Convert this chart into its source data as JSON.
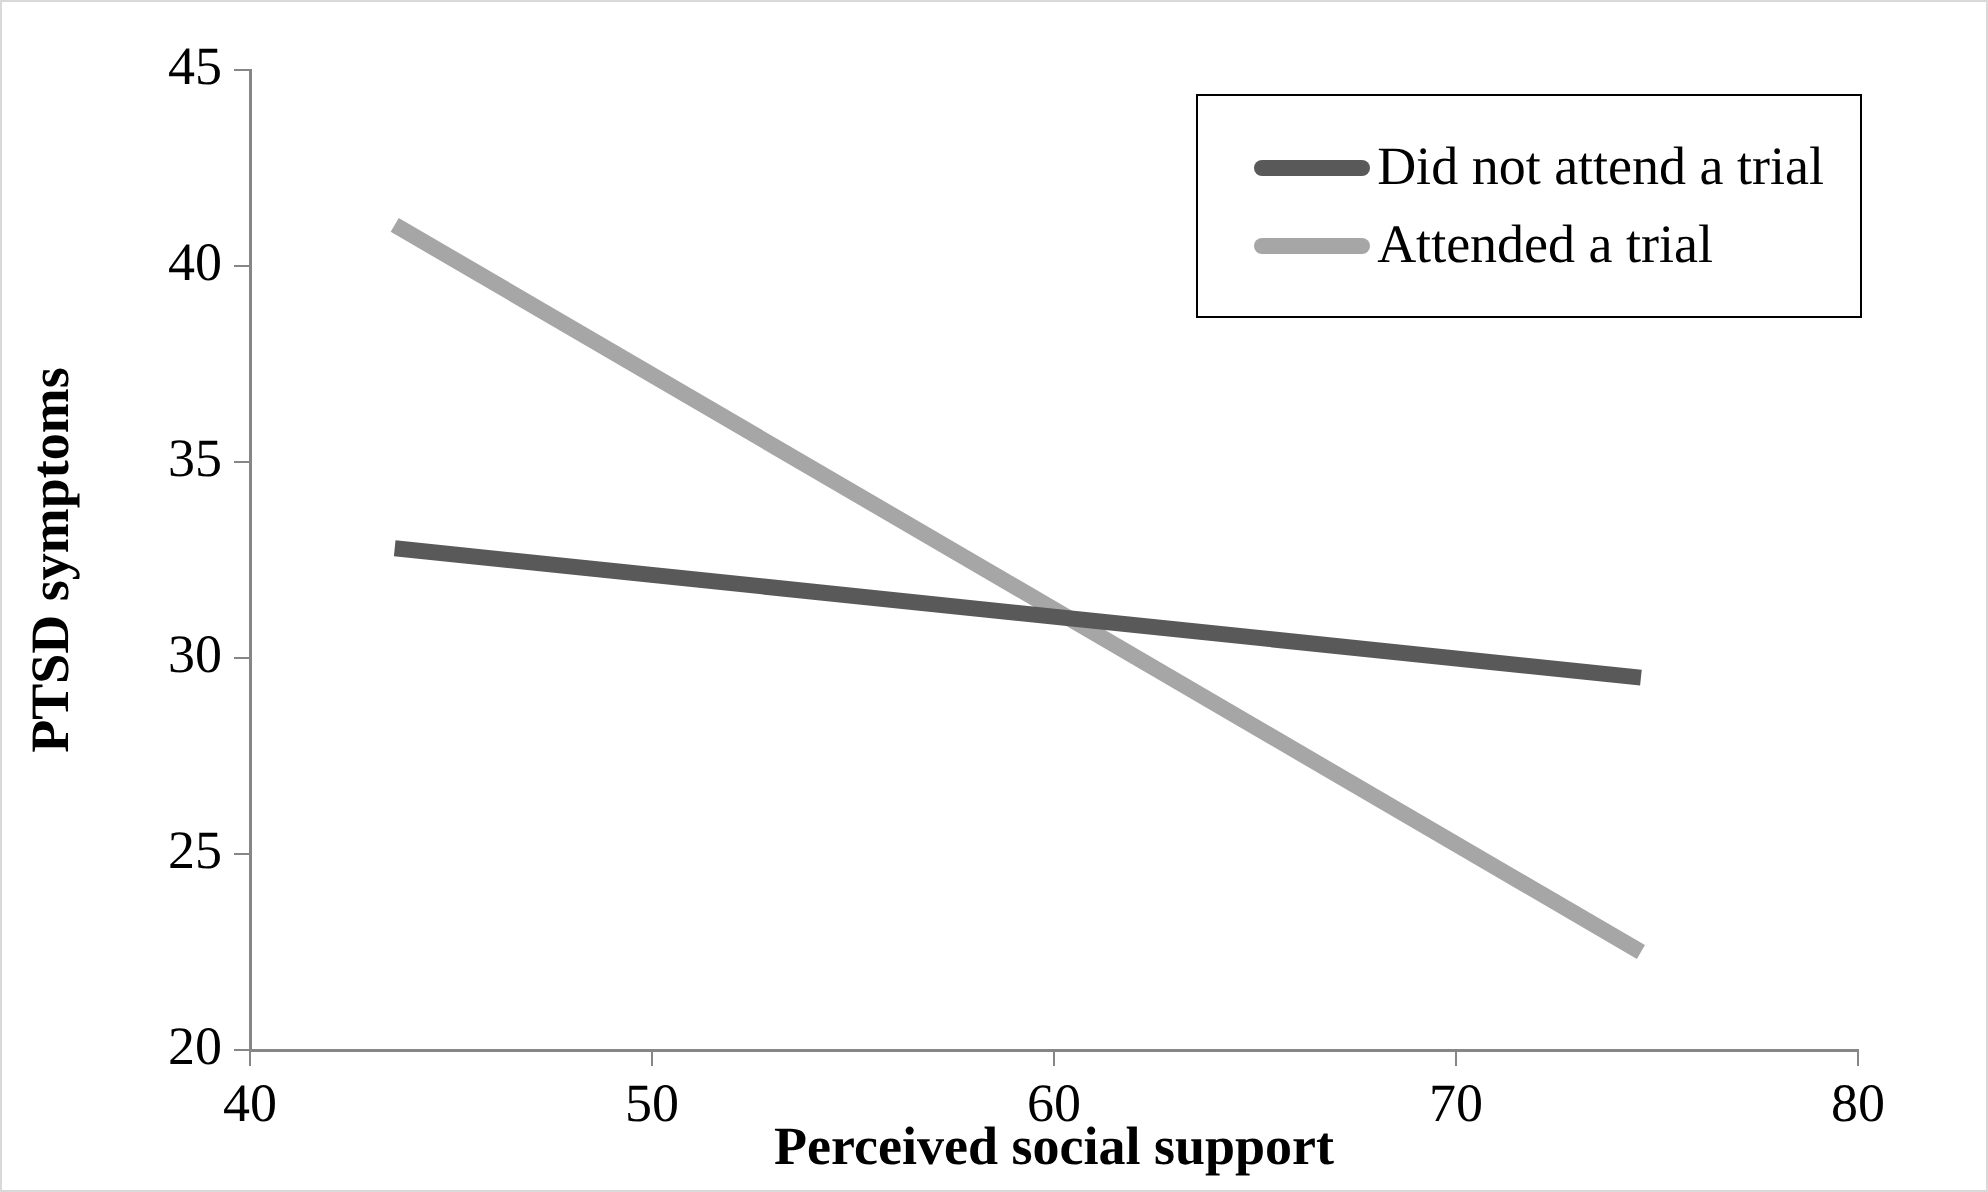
{
  "chart_data": {
    "type": "line",
    "xlabel": "Perceived social support",
    "ylabel": "PTSD symptoms",
    "xlim": [
      40,
      80
    ],
    "xticks": [
      40,
      50,
      60,
      70,
      80
    ],
    "ylim": [
      20,
      45
    ],
    "yticks": [
      20,
      25,
      30,
      35,
      40,
      45
    ],
    "x": [
      43.6,
      74.6
    ],
    "grid": false,
    "legend": "top right",
    "marker": "none",
    "line_style": "solid",
    "series": [
      {
        "name": "Did not attend a trial",
        "color": "#595959",
        "values": [
          32.8,
          29.5
        ]
      },
      {
        "name": "Attended a trial",
        "color": "#a6a6a6",
        "values": [
          41.05,
          22.5
        ]
      }
    ]
  }
}
